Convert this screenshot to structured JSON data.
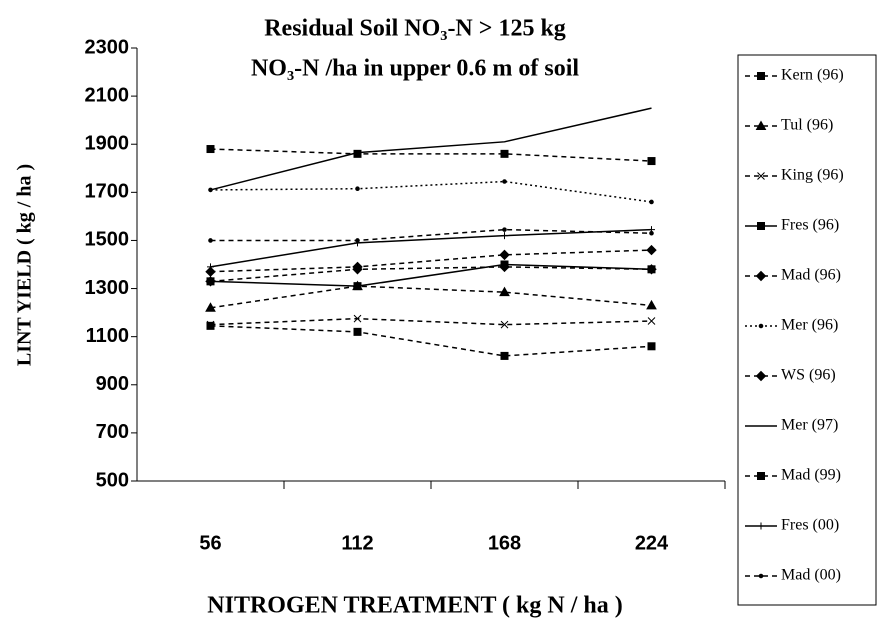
{
  "chart_data": {
    "type": "line",
    "title": [
      "Residual Soil NO₃-N > 125 kg",
      "NO₃-N /ha in upper 0.6 m of soil"
    ],
    "x_label": "NITROGEN TREATMENT ( kg N / ha )",
    "y_label": "LINT YIELD ( kg / ha )",
    "categories": [
      "56",
      "112",
      "168",
      "224"
    ],
    "ylim": [
      500,
      2300
    ],
    "yticks": [
      500,
      700,
      900,
      1100,
      1300,
      1500,
      1700,
      1900,
      2100,
      2300
    ],
    "legend": "right",
    "series": [
      {
        "name": "Kern (96)",
        "color": "#000",
        "style": "dashed",
        "marker": "square",
        "values": [
          1880,
          1860,
          1860,
          1830
        ]
      },
      {
        "name": "Tul (96)",
        "color": "#000",
        "style": "dashed",
        "marker": "triangle",
        "values": [
          1220,
          1310,
          1285,
          1230
        ]
      },
      {
        "name": "King (96)",
        "color": "#000",
        "style": "dashed",
        "marker": "cross",
        "values": [
          1150,
          1175,
          1150,
          1165
        ]
      },
      {
        "name": "Fres (96)",
        "color": "#000",
        "style": "solid",
        "marker": "square",
        "values": [
          1330,
          1310,
          1400,
          1380
        ]
      },
      {
        "name": "Mad (96)",
        "color": "#000",
        "style": "dashed",
        "marker": "diamond",
        "values": [
          1330,
          1380,
          1390,
          1380
        ]
      },
      {
        "name": "Mer (96)",
        "color": "#000",
        "style": "dotted",
        "marker": "dot",
        "values": [
          1710,
          1715,
          1745,
          1660
        ]
      },
      {
        "name": "WS (96)",
        "color": "#000",
        "style": "dashed",
        "marker": "diamond",
        "values": [
          1370,
          1390,
          1440,
          1460
        ]
      },
      {
        "name": "Mer (97)",
        "color": "#000",
        "style": "solid",
        "marker": "none",
        "values": [
          1710,
          1865,
          1910,
          2050
        ]
      },
      {
        "name": "Mad (99)",
        "color": "#000",
        "style": "dashed",
        "marker": "square",
        "values": [
          1145,
          1120,
          1020,
          1060
        ]
      },
      {
        "name": "Fres (00)",
        "color": "#000",
        "style": "solid",
        "marker": "plus",
        "values": [
          1390,
          1490,
          1520,
          1545
        ]
      },
      {
        "name": "Mad (00)",
        "color": "#000",
        "style": "dashed",
        "marker": "dot",
        "values": [
          1500,
          1500,
          1545,
          1530
        ]
      }
    ]
  }
}
